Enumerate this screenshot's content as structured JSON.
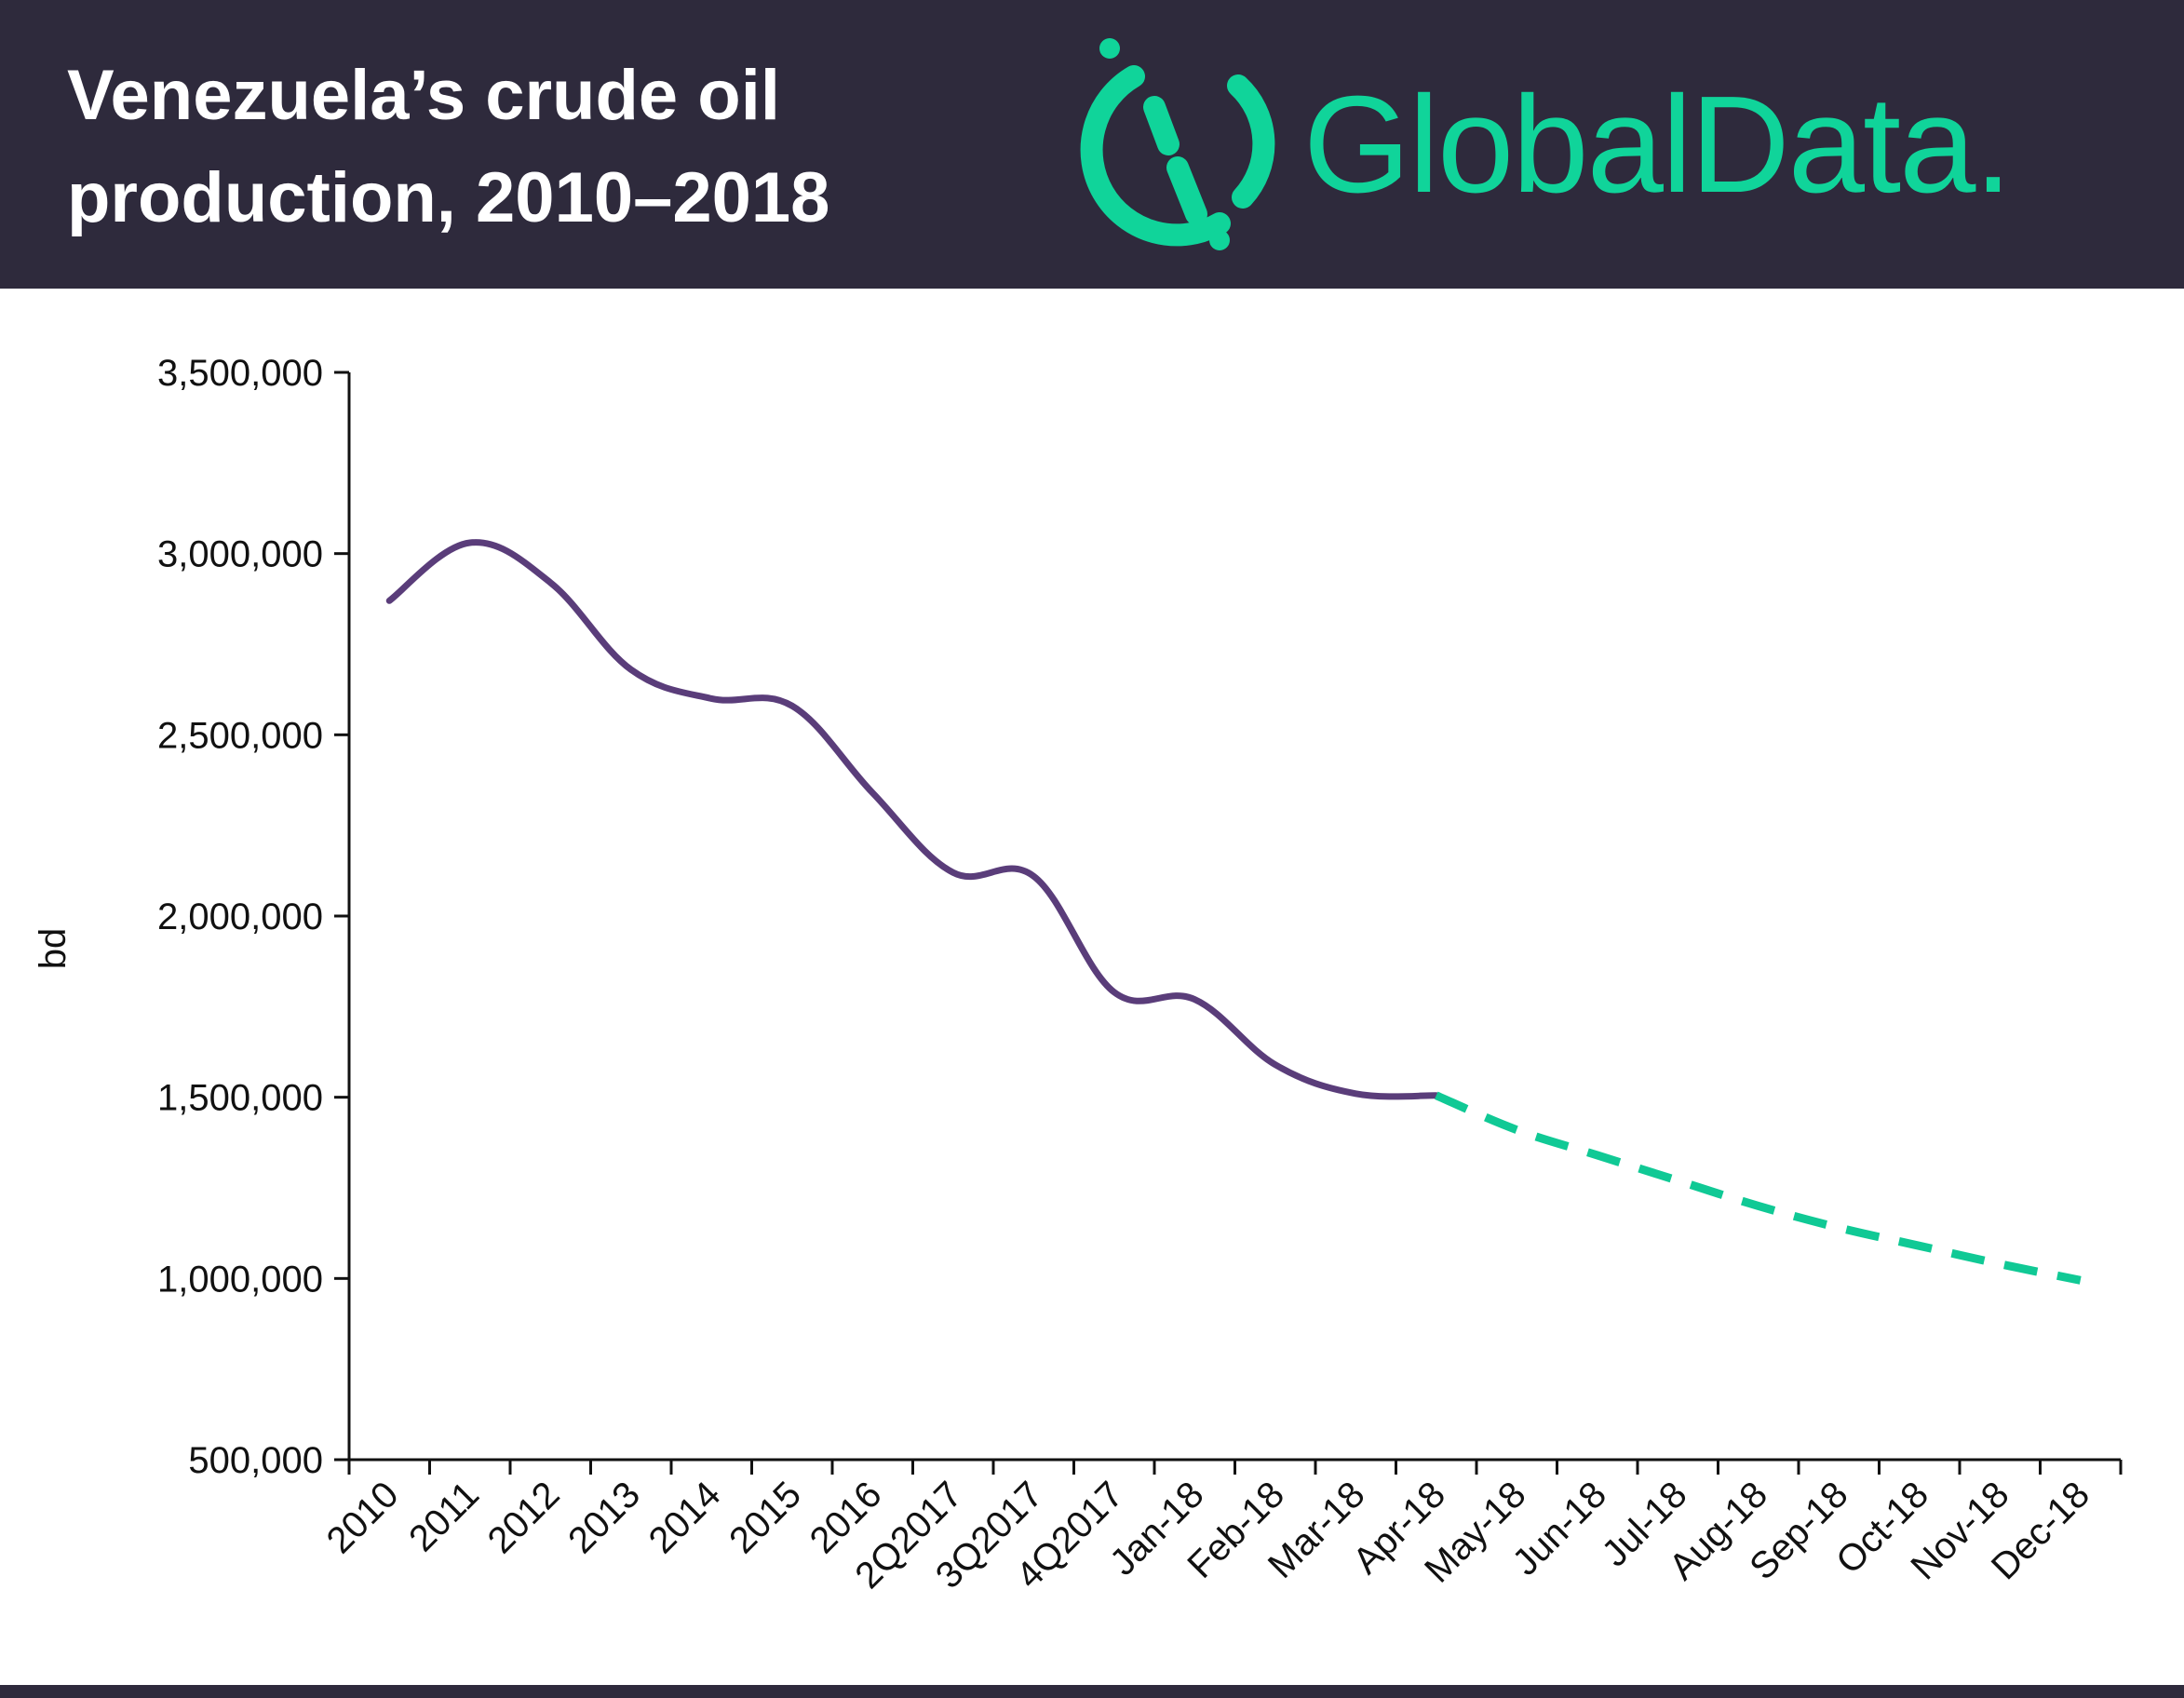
{
  "header": {
    "title": "Venezuela’s crude oil\nproduction, 2010–2018",
    "logo_text": "GlobalData."
  },
  "colors": {
    "header_bg": "#2e2a3c",
    "actual_line": "#5a3d7a",
    "forecast_line": "#10c995",
    "brand": "#10d49a"
  },
  "chart_data": {
    "type": "line",
    "title": "",
    "xlabel": "",
    "ylabel": "bd",
    "ylim": [
      500000,
      3500000
    ],
    "yticks": [
      500000,
      1000000,
      1500000,
      2000000,
      2500000,
      3000000,
      3500000
    ],
    "ytick_labels": [
      "500,000",
      "1,000,000",
      "1,500,000",
      "2,000,000",
      "2,500,000",
      "3,000,000",
      "3,500,000"
    ],
    "categories": [
      "2010",
      "2011",
      "2012",
      "2013",
      "2014",
      "2015",
      "2016",
      "2Q2017",
      "3Q2017",
      "4Q2017",
      "Jan-18",
      "Feb-18",
      "Mar-18",
      "Apr-18",
      "May-18",
      "Jun-18",
      "Jul-18",
      "Aug-18",
      "Sep-18",
      "Oct-18",
      "Nov-18",
      "Dec-18"
    ],
    "grid": false,
    "legend": "none",
    "series": [
      {
        "style": "solid",
        "values": [
          2870000,
          3030000,
          2920000,
          2680000,
          2600000,
          2580000,
          2340000,
          2120000,
          2110000,
          1790000,
          1770000,
          1590000,
          1510000,
          1505000,
          null,
          null,
          null,
          null,
          null,
          null,
          null,
          null
        ]
      },
      {
        "style": "dashed",
        "values": [
          null,
          null,
          null,
          null,
          null,
          null,
          null,
          null,
          null,
          null,
          null,
          null,
          null,
          1505000,
          1410000,
          1340000,
          1270000,
          1200000,
          1140000,
          1090000,
          1040000,
          995000
        ]
      }
    ]
  }
}
